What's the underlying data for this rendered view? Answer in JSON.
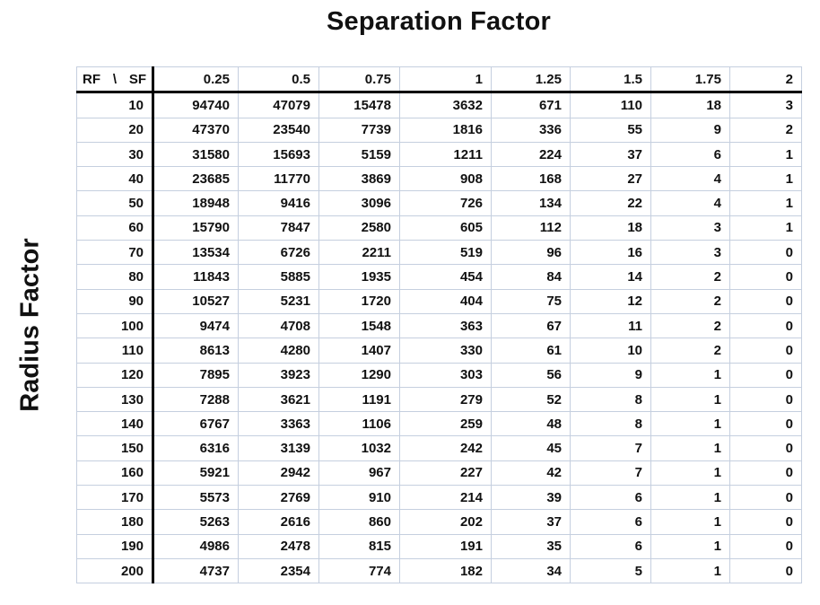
{
  "chart_data": {
    "type": "table",
    "title": "Separation Factor",
    "row_axis_label": "Radius Factor",
    "corner_label": {
      "row": "RF",
      "sep": "\\",
      "col": "SF"
    },
    "columns": [
      "0.25",
      "0.5",
      "0.75",
      "1",
      "1.25",
      "1.5",
      "1.75",
      "2"
    ],
    "rows": [
      {
        "rf": "10",
        "values": [
          "94740",
          "47079",
          "15478",
          "3632",
          "671",
          "110",
          "18",
          "3"
        ]
      },
      {
        "rf": "20",
        "values": [
          "47370",
          "23540",
          "7739",
          "1816",
          "336",
          "55",
          "9",
          "2"
        ]
      },
      {
        "rf": "30",
        "values": [
          "31580",
          "15693",
          "5159",
          "1211",
          "224",
          "37",
          "6",
          "1"
        ]
      },
      {
        "rf": "40",
        "values": [
          "23685",
          "11770",
          "3869",
          "908",
          "168",
          "27",
          "4",
          "1"
        ]
      },
      {
        "rf": "50",
        "values": [
          "18948",
          "9416",
          "3096",
          "726",
          "134",
          "22",
          "4",
          "1"
        ]
      },
      {
        "rf": "60",
        "values": [
          "15790",
          "7847",
          "2580",
          "605",
          "112",
          "18",
          "3",
          "1"
        ]
      },
      {
        "rf": "70",
        "values": [
          "13534",
          "6726",
          "2211",
          "519",
          "96",
          "16",
          "3",
          "0"
        ]
      },
      {
        "rf": "80",
        "values": [
          "11843",
          "5885",
          "1935",
          "454",
          "84",
          "14",
          "2",
          "0"
        ]
      },
      {
        "rf": "90",
        "values": [
          "10527",
          "5231",
          "1720",
          "404",
          "75",
          "12",
          "2",
          "0"
        ]
      },
      {
        "rf": "100",
        "values": [
          "9474",
          "4708",
          "1548",
          "363",
          "67",
          "11",
          "2",
          "0"
        ]
      },
      {
        "rf": "110",
        "values": [
          "8613",
          "4280",
          "1407",
          "330",
          "61",
          "10",
          "2",
          "0"
        ]
      },
      {
        "rf": "120",
        "values": [
          "7895",
          "3923",
          "1290",
          "303",
          "56",
          "9",
          "1",
          "0"
        ]
      },
      {
        "rf": "130",
        "values": [
          "7288",
          "3621",
          "1191",
          "279",
          "52",
          "8",
          "1",
          "0"
        ]
      },
      {
        "rf": "140",
        "values": [
          "6767",
          "3363",
          "1106",
          "259",
          "48",
          "8",
          "1",
          "0"
        ]
      },
      {
        "rf": "150",
        "values": [
          "6316",
          "3139",
          "1032",
          "242",
          "45",
          "7",
          "1",
          "0"
        ]
      },
      {
        "rf": "160",
        "values": [
          "5921",
          "2942",
          "967",
          "227",
          "42",
          "7",
          "1",
          "0"
        ]
      },
      {
        "rf": "170",
        "values": [
          "5573",
          "2769",
          "910",
          "214",
          "39",
          "6",
          "1",
          "0"
        ]
      },
      {
        "rf": "180",
        "values": [
          "5263",
          "2616",
          "860",
          "202",
          "37",
          "6",
          "1",
          "0"
        ]
      },
      {
        "rf": "190",
        "values": [
          "4986",
          "2478",
          "815",
          "191",
          "35",
          "6",
          "1",
          "0"
        ]
      },
      {
        "rf": "200",
        "values": [
          "4737",
          "2354",
          "774",
          "182",
          "34",
          "5",
          "1",
          "0"
        ]
      }
    ],
    "layout_hints": {
      "values_alignment": "right",
      "grid": "on",
      "thick_divider_after_header_row": true,
      "thick_divider_after_row_header_column": true
    }
  },
  "colors": {
    "grid_line": "#c5cfdf",
    "divider": "#000000",
    "text": "#111111",
    "page_background": "#ffffff"
  }
}
